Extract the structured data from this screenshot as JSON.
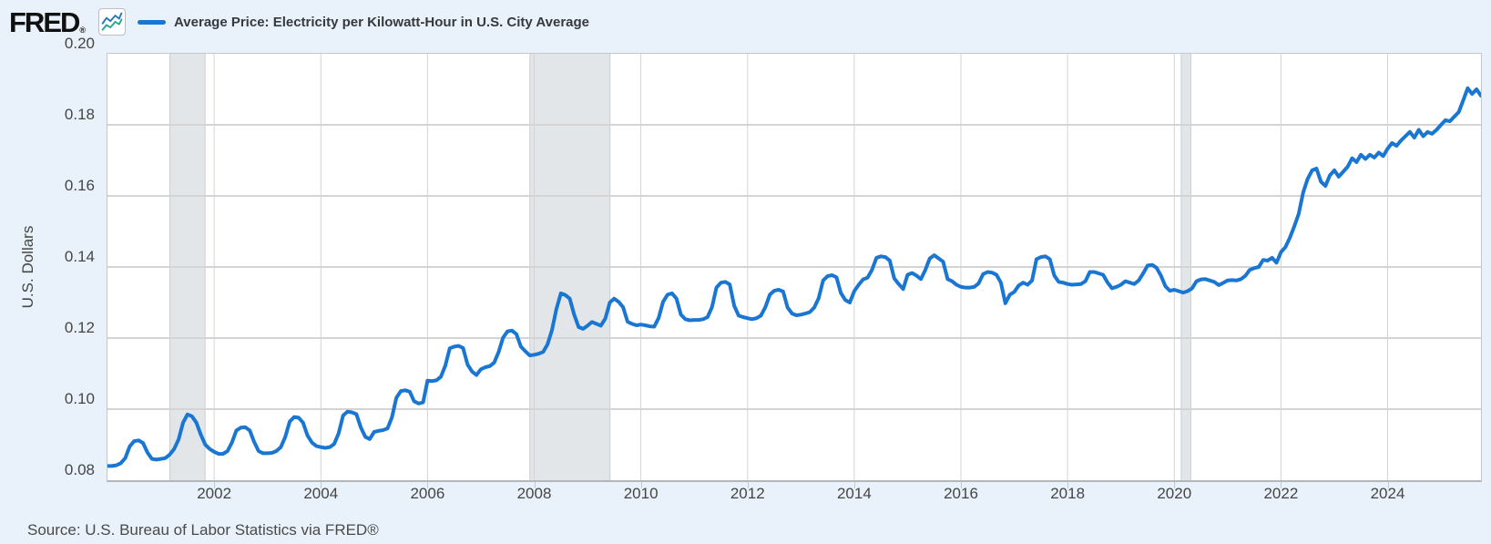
{
  "header": {
    "logo_text": "FRED",
    "logo_reg": "®",
    "series_title": "Average Price: Electricity per Kilowatt-Hour in U.S. City Average"
  },
  "footer": {
    "source": "Source: U.S. Bureau of Labor Statistics via FRED®"
  },
  "chart_data": {
    "type": "line",
    "title": "Average Price: Electricity per Kilowatt-Hour in U.S. City Average",
    "xlabel": "",
    "ylabel": "U.S. Dollars",
    "frequency": "monthly",
    "x_start": "2000-01",
    "x_end": "2025-10",
    "ylim": [
      0.08,
      0.2
    ],
    "y_ticks": [
      0.2,
      0.18,
      0.16,
      0.14,
      0.12,
      0.1,
      0.08
    ],
    "x_ticks": [
      2002,
      2004,
      2006,
      2008,
      2010,
      2012,
      2014,
      2016,
      2018,
      2020,
      2022,
      2024
    ],
    "grid": true,
    "legend_position": "top",
    "recession_bands": [
      {
        "start_year": 2001.17,
        "end_year": 2001.83
      },
      {
        "start_year": 2007.92,
        "end_year": 2009.42
      },
      {
        "start_year": 2020.13,
        "end_year": 2020.31
      }
    ],
    "colors": {
      "line": "#1976d2",
      "recession_band": "#e3e6e9",
      "recession_band_edge": "#c9ced2",
      "grid": "#d4d4d4",
      "plot_border": "#c3c8cd",
      "background": "#e9f2fb",
      "plot_background": "#ffffff",
      "text": "#454545",
      "icon_blue": "#2878bd",
      "icon_teal": "#2ba48e"
    },
    "series": [
      {
        "name": "Average Price: Electricity per Kilowatt-Hour in U.S. City Average",
        "values": [
          0.084,
          0.084,
          0.0842,
          0.0848,
          0.0862,
          0.0895,
          0.091,
          0.0912,
          0.0905,
          0.0878,
          0.086,
          0.0858,
          0.086,
          0.0862,
          0.0872,
          0.0888,
          0.0915,
          0.0962,
          0.0985,
          0.098,
          0.0962,
          0.0928,
          0.09,
          0.0888,
          0.088,
          0.0874,
          0.0874,
          0.0882,
          0.0906,
          0.094,
          0.0948,
          0.0949,
          0.094,
          0.0908,
          0.0882,
          0.0876,
          0.0876,
          0.0877,
          0.0882,
          0.0893,
          0.0922,
          0.0965,
          0.0978,
          0.0976,
          0.0962,
          0.0926,
          0.0906,
          0.0896,
          0.0893,
          0.0891,
          0.0893,
          0.0902,
          0.0932,
          0.0982,
          0.0993,
          0.0991,
          0.0986,
          0.0948,
          0.0922,
          0.0916,
          0.0936,
          0.0939,
          0.0941,
          0.0946,
          0.0977,
          0.1032,
          0.1051,
          0.1053,
          0.1049,
          0.1022,
          0.1016,
          0.1019,
          0.108,
          0.1079,
          0.1081,
          0.1091,
          0.1122,
          0.1171,
          0.1176,
          0.1178,
          0.1172,
          0.1126,
          0.1106,
          0.1096,
          0.1112,
          0.1118,
          0.1121,
          0.1131,
          0.1161,
          0.1201,
          0.1219,
          0.1221,
          0.1211,
          0.1176,
          0.1163,
          0.1151,
          0.1153,
          0.1156,
          0.1161,
          0.1182,
          0.1222,
          0.1282,
          0.1326,
          0.1321,
          0.1311,
          0.1266,
          0.1231,
          0.1226,
          0.1235,
          0.1245,
          0.124,
          0.1235,
          0.1255,
          0.13,
          0.1311,
          0.1302,
          0.1287,
          0.1246,
          0.124,
          0.1236,
          0.1238,
          0.1236,
          0.1233,
          0.1232,
          0.1257,
          0.1302,
          0.1322,
          0.1326,
          0.1311,
          0.1266,
          0.1253,
          0.125,
          0.1251,
          0.1251,
          0.1253,
          0.1259,
          0.1287,
          0.1342,
          0.1356,
          0.1358,
          0.1351,
          0.1291,
          0.1263,
          0.1259,
          0.1256,
          0.1253,
          0.1256,
          0.1263,
          0.1287,
          0.1322,
          0.1333,
          0.1336,
          0.1331,
          0.1286,
          0.1269,
          0.1264,
          0.1266,
          0.1269,
          0.1273,
          0.1286,
          0.1312,
          0.1362,
          0.1374,
          0.1377,
          0.1371,
          0.1327,
          0.1307,
          0.13,
          0.1332,
          0.135,
          0.1365,
          0.137,
          0.1392,
          0.1426,
          0.143,
          0.1428,
          0.1418,
          0.1368,
          0.1352,
          0.1338,
          0.1378,
          0.1383,
          0.1376,
          0.1366,
          0.1392,
          0.1424,
          0.1433,
          0.1424,
          0.1415,
          0.1366,
          0.136,
          0.135,
          0.1344,
          0.1342,
          0.1342,
          0.1344,
          0.1354,
          0.138,
          0.1386,
          0.1384,
          0.1378,
          0.1356,
          0.1298,
          0.1322,
          0.133,
          0.1348,
          0.1356,
          0.135,
          0.1362,
          0.1422,
          0.1428,
          0.143,
          0.1422,
          0.1376,
          0.1358,
          0.1356,
          0.1352,
          0.135,
          0.1351,
          0.1352,
          0.136,
          0.1386,
          0.1386,
          0.1382,
          0.1378,
          0.1356,
          0.134,
          0.1344,
          0.135,
          0.136,
          0.1356,
          0.1352,
          0.1362,
          0.1382,
          0.1404,
          0.1406,
          0.1398,
          0.1376,
          0.1346,
          0.1333,
          0.1336,
          0.1332,
          0.1328,
          0.1332,
          0.134,
          0.136,
          0.1365,
          0.1366,
          0.1362,
          0.1358,
          0.1349,
          0.1355,
          0.1362,
          0.1363,
          0.1362,
          0.1366,
          0.1375,
          0.1392,
          0.1397,
          0.14,
          0.142,
          0.1418,
          0.1426,
          0.1412,
          0.1442,
          0.1456,
          0.1482,
          0.1514,
          0.155,
          0.161,
          0.1648,
          0.1672,
          0.1677,
          0.164,
          0.1628,
          0.1658,
          0.1672,
          0.1654,
          0.1668,
          0.1682,
          0.1706,
          0.1695,
          0.1716,
          0.1704,
          0.1716,
          0.1708,
          0.1722,
          0.1712,
          0.1733,
          0.1749,
          0.1741,
          0.1756,
          0.1768,
          0.178,
          0.1764,
          0.1786,
          0.1768,
          0.178,
          0.1775,
          0.1786,
          0.18,
          0.1813,
          0.181,
          0.1823,
          0.1836,
          0.1869,
          0.1903,
          0.1887,
          0.19,
          0.1882
        ]
      }
    ]
  }
}
